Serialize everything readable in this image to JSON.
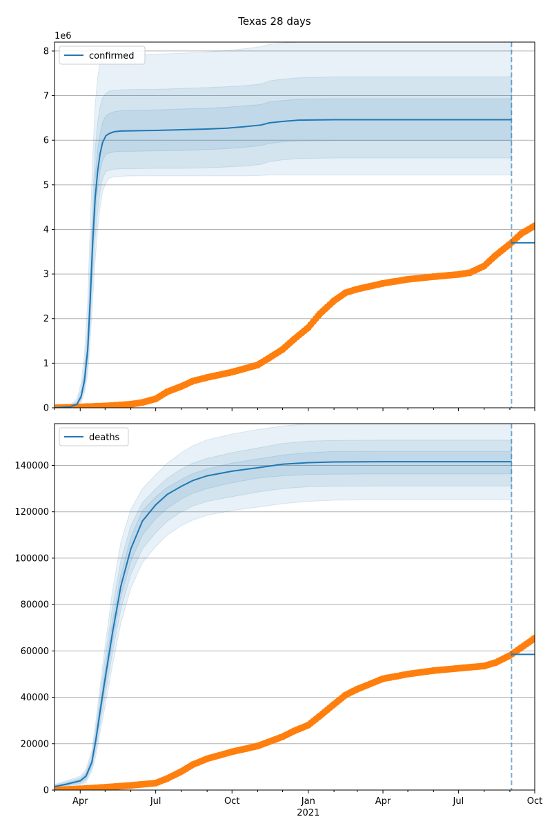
{
  "title": "Texas 28 days",
  "colors": {
    "model": "#1f77b4",
    "observed": "#ff7f0e",
    "grid": "#b0b0b0",
    "band": "#1f77b4"
  },
  "x_axis": {
    "ticks": [
      "Apr",
      "Jul",
      "Oct",
      "Jan",
      "Apr",
      "Jul",
      "Oct"
    ],
    "tick_dates": [
      "2020-04-01",
      "2020-07-01",
      "2020-10-01",
      "2021-01-01",
      "2021-04-01",
      "2021-07-01",
      "2021-10-01"
    ],
    "year_label": "2021",
    "range": [
      "2020-03-01",
      "2021-10-01"
    ],
    "forecast_start": "2021-09-03"
  },
  "chart_data": [
    {
      "type": "line",
      "legend": "confirmed",
      "legend_position": "top-left",
      "offset_label": "1e6",
      "ylim": [
        0,
        8200000
      ],
      "yticks": [
        0,
        1,
        2,
        3,
        4,
        5,
        6,
        7,
        8
      ],
      "ytick_labels": [
        "0",
        "1",
        "2",
        "3",
        "4",
        "5",
        "6",
        "7",
        "8"
      ],
      "grid": "y",
      "series": [
        {
          "name": "confirmed",
          "style": "line",
          "x": [
            "2020-03-01",
            "2020-03-20",
            "2020-03-28",
            "2020-04-02",
            "2020-04-06",
            "2020-04-10",
            "2020-04-13",
            "2020-04-16",
            "2020-04-19",
            "2020-04-22",
            "2020-04-25",
            "2020-04-28",
            "2020-05-02",
            "2020-05-06",
            "2020-05-12",
            "2020-05-20",
            "2020-06-01",
            "2020-07-01",
            "2020-08-01",
            "2020-09-01",
            "2020-09-25",
            "2020-10-15",
            "2020-11-05",
            "2020-11-15",
            "2020-12-01",
            "2020-12-20",
            "2021-02-01",
            "2021-09-03"
          ],
          "values": [
            0,
            20000,
            80000,
            250000,
            600000,
            1300000,
            2400000,
            3700000,
            4700000,
            5300000,
            5700000,
            5950000,
            6100000,
            6150000,
            6190000,
            6205000,
            6210000,
            6220000,
            6235000,
            6250000,
            6270000,
            6300000,
            6340000,
            6390000,
            6420000,
            6450000,
            6460000,
            6460000
          ]
        },
        {
          "name": "confirmed reported",
          "style": "markers",
          "x": [
            "2020-03-01",
            "2020-04-01",
            "2020-05-01",
            "2020-06-01",
            "2020-06-15",
            "2020-07-01",
            "2020-07-15",
            "2020-08-01",
            "2020-08-15",
            "2020-09-01",
            "2020-10-01",
            "2020-11-01",
            "2020-11-15",
            "2020-12-01",
            "2020-12-15",
            "2021-01-01",
            "2021-01-15",
            "2021-02-01",
            "2021-02-15",
            "2021-03-01",
            "2021-04-01",
            "2021-05-01",
            "2021-06-01",
            "2021-07-01",
            "2021-07-15",
            "2021-08-01",
            "2021-08-15",
            "2021-09-01",
            "2021-09-15",
            "2021-10-01"
          ],
          "values": [
            0,
            20000,
            40000,
            80000,
            120000,
            200000,
            360000,
            480000,
            600000,
            680000,
            800000,
            960000,
            1120000,
            1310000,
            1540000,
            1800000,
            2110000,
            2400000,
            2580000,
            2660000,
            2790000,
            2880000,
            2940000,
            2990000,
            3030000,
            3180000,
            3420000,
            3670000,
            3910000,
            4080000
          ]
        },
        {
          "name": "forecast level",
          "style": "line",
          "x": [
            "2021-09-03",
            "2021-10-01"
          ],
          "values": [
            3700000,
            3700000
          ]
        }
      ],
      "bands": [
        {
          "lower": [
            0,
            0,
            30000,
            120000,
            330000,
            750000,
            1500000,
            2400000,
            3300000,
            4000000,
            4500000,
            4850000,
            5050000,
            5150000,
            5180000,
            5190000,
            5200000,
            5200000,
            5200000,
            5200000,
            5200000,
            5200000,
            5210000,
            5220000,
            5220000,
            5220000,
            5220000,
            5220000
          ],
          "upper": [
            0,
            60000,
            200000,
            560000,
            1200000,
            2400000,
            4100000,
            5600000,
            6800000,
            7400000,
            7750000,
            7850000,
            7900000,
            7910000,
            7915000,
            7920000,
            7925000,
            7930000,
            7950000,
            7980000,
            8010000,
            8050000,
            8100000,
            8150000,
            8180000,
            8200000,
            8200000,
            8200000
          ]
        },
        {
          "lower": [
            0,
            5000,
            50000,
            170000,
            430000,
            950000,
            1850000,
            2900000,
            3800000,
            4400000,
            4850000,
            5150000,
            5300000,
            5330000,
            5350000,
            5360000,
            5360000,
            5370000,
            5370000,
            5380000,
            5400000,
            5420000,
            5460000,
            5520000,
            5560000,
            5590000,
            5600000,
            5600000
          ],
          "upper": [
            0,
            40000,
            140000,
            400000,
            880000,
            1800000,
            3200000,
            4600000,
            5800000,
            6400000,
            6750000,
            6950000,
            7050000,
            7100000,
            7120000,
            7130000,
            7135000,
            7140000,
            7160000,
            7180000,
            7200000,
            7220000,
            7260000,
            7330000,
            7370000,
            7400000,
            7420000,
            7420000
          ]
        },
        {
          "lower": [
            0,
            12000,
            65000,
            210000,
            520000,
            1150000,
            2150000,
            3350000,
            4300000,
            4900000,
            5300000,
            5550000,
            5680000,
            5710000,
            5740000,
            5750000,
            5750000,
            5760000,
            5770000,
            5790000,
            5810000,
            5840000,
            5880000,
            5930000,
            5960000,
            5980000,
            5990000,
            5990000
          ],
          "upper": [
            0,
            30000,
            105000,
            310000,
            720000,
            1500000,
            2750000,
            4100000,
            5200000,
            5800000,
            6150000,
            6400000,
            6550000,
            6600000,
            6640000,
            6660000,
            6670000,
            6680000,
            6700000,
            6720000,
            6740000,
            6770000,
            6800000,
            6860000,
            6890000,
            6920000,
            6930000,
            6930000
          ]
        }
      ]
    },
    {
      "type": "line",
      "legend": "deaths",
      "legend_position": "top-left",
      "ylim": [
        0,
        158000
      ],
      "yticks": [
        0,
        20000,
        40000,
        60000,
        80000,
        100000,
        120000,
        140000
      ],
      "ytick_labels": [
        "0",
        "20000",
        "40000",
        "60000",
        "80000",
        "100000",
        "120000",
        "140000"
      ],
      "grid": "y",
      "series": [
        {
          "name": "deaths",
          "style": "line",
          "x": [
            "2020-03-01",
            "2020-03-15",
            "2020-04-01",
            "2020-04-08",
            "2020-04-15",
            "2020-04-20",
            "2020-04-25",
            "2020-05-01",
            "2020-05-10",
            "2020-05-20",
            "2020-06-01",
            "2020-06-15",
            "2020-07-01",
            "2020-07-15",
            "2020-08-01",
            "2020-08-15",
            "2020-09-01",
            "2020-10-01",
            "2020-11-01",
            "2020-12-01",
            "2021-01-01",
            "2021-02-01",
            "2021-04-01",
            "2021-09-03"
          ],
          "values": [
            1500,
            2500,
            4000,
            6000,
            12000,
            22000,
            34000,
            48000,
            68000,
            88000,
            104000,
            116000,
            123000,
            127500,
            131000,
            133500,
            135500,
            137500,
            139000,
            140500,
            141200,
            141500,
            141600,
            141600
          ]
        },
        {
          "name": "deaths reported",
          "style": "markers",
          "x": [
            "2020-03-01",
            "2020-04-01",
            "2020-05-01",
            "2020-06-01",
            "2020-07-01",
            "2020-07-15",
            "2020-08-01",
            "2020-08-15",
            "2020-09-01",
            "2020-10-01",
            "2020-11-01",
            "2020-12-01",
            "2020-12-15",
            "2021-01-01",
            "2021-01-15",
            "2021-02-01",
            "2021-02-15",
            "2021-03-01",
            "2021-04-01",
            "2021-05-01",
            "2021-06-01",
            "2021-07-01",
            "2021-08-01",
            "2021-08-15",
            "2021-09-01",
            "2021-09-15",
            "2021-10-01"
          ],
          "values": [
            0,
            500,
            1200,
            2000,
            3000,
            5000,
            8000,
            11000,
            13500,
            16500,
            19000,
            23000,
            25500,
            28000,
            32000,
            37000,
            41000,
            43500,
            48000,
            50000,
            51500,
            52500,
            53500,
            55000,
            58000,
            61500,
            65500
          ]
        },
        {
          "name": "forecast level",
          "style": "line",
          "x": [
            "2021-09-03",
            "2021-10-01"
          ],
          "values": [
            58500,
            58500
          ]
        }
      ],
      "bands": [
        {
          "lower": [
            800,
            1300,
            2200,
            3400,
            8000,
            15000,
            25000,
            36000,
            54000,
            72000,
            87000,
            98000,
            105000,
            110000,
            114000,
            116500,
            118500,
            120500,
            122000,
            123500,
            124500,
            125000,
            125200,
            125200
          ],
          "upper": [
            2400,
            4000,
            6000,
            9000,
            17000,
            30000,
            45000,
            62000,
            86000,
            107000,
            121000,
            130000,
            136000,
            141000,
            145500,
            148500,
            151000,
            153500,
            155500,
            157000,
            158000,
            158000,
            158000,
            158000
          ]
        },
        {
          "lower": [
            1000,
            1700,
            2800,
            4300,
            9500,
            17500,
            28500,
            40500,
            59500,
            78000,
            93000,
            104000,
            111000,
            116000,
            120000,
            122500,
            124500,
            126500,
            128500,
            130000,
            130800,
            131000,
            131100,
            131100
          ],
          "upper": [
            2100,
            3500,
            5200,
            7800,
            15000,
            27000,
            41000,
            57000,
            79000,
            99000,
            114000,
            124000,
            130000,
            134500,
            138500,
            141000,
            143000,
            145500,
            147500,
            149500,
            150500,
            150800,
            150900,
            150900
          ]
        },
        {
          "lower": [
            1200,
            2100,
            3300,
            5000,
            10800,
            19800,
            31500,
            44500,
            64000,
            83500,
            98500,
            110000,
            117000,
            121500,
            125500,
            128000,
            130000,
            132500,
            134500,
            135500,
            136000,
            136200,
            136300,
            136300
          ],
          "upper": [
            1800,
            3000,
            4600,
            7000,
            13200,
            24300,
            37000,
            52000,
            73000,
            93000,
            109000,
            120500,
            126500,
            130500,
            134000,
            136500,
            138500,
            141000,
            142800,
            144500,
            145500,
            146000,
            146100,
            146100
          ]
        }
      ]
    }
  ]
}
